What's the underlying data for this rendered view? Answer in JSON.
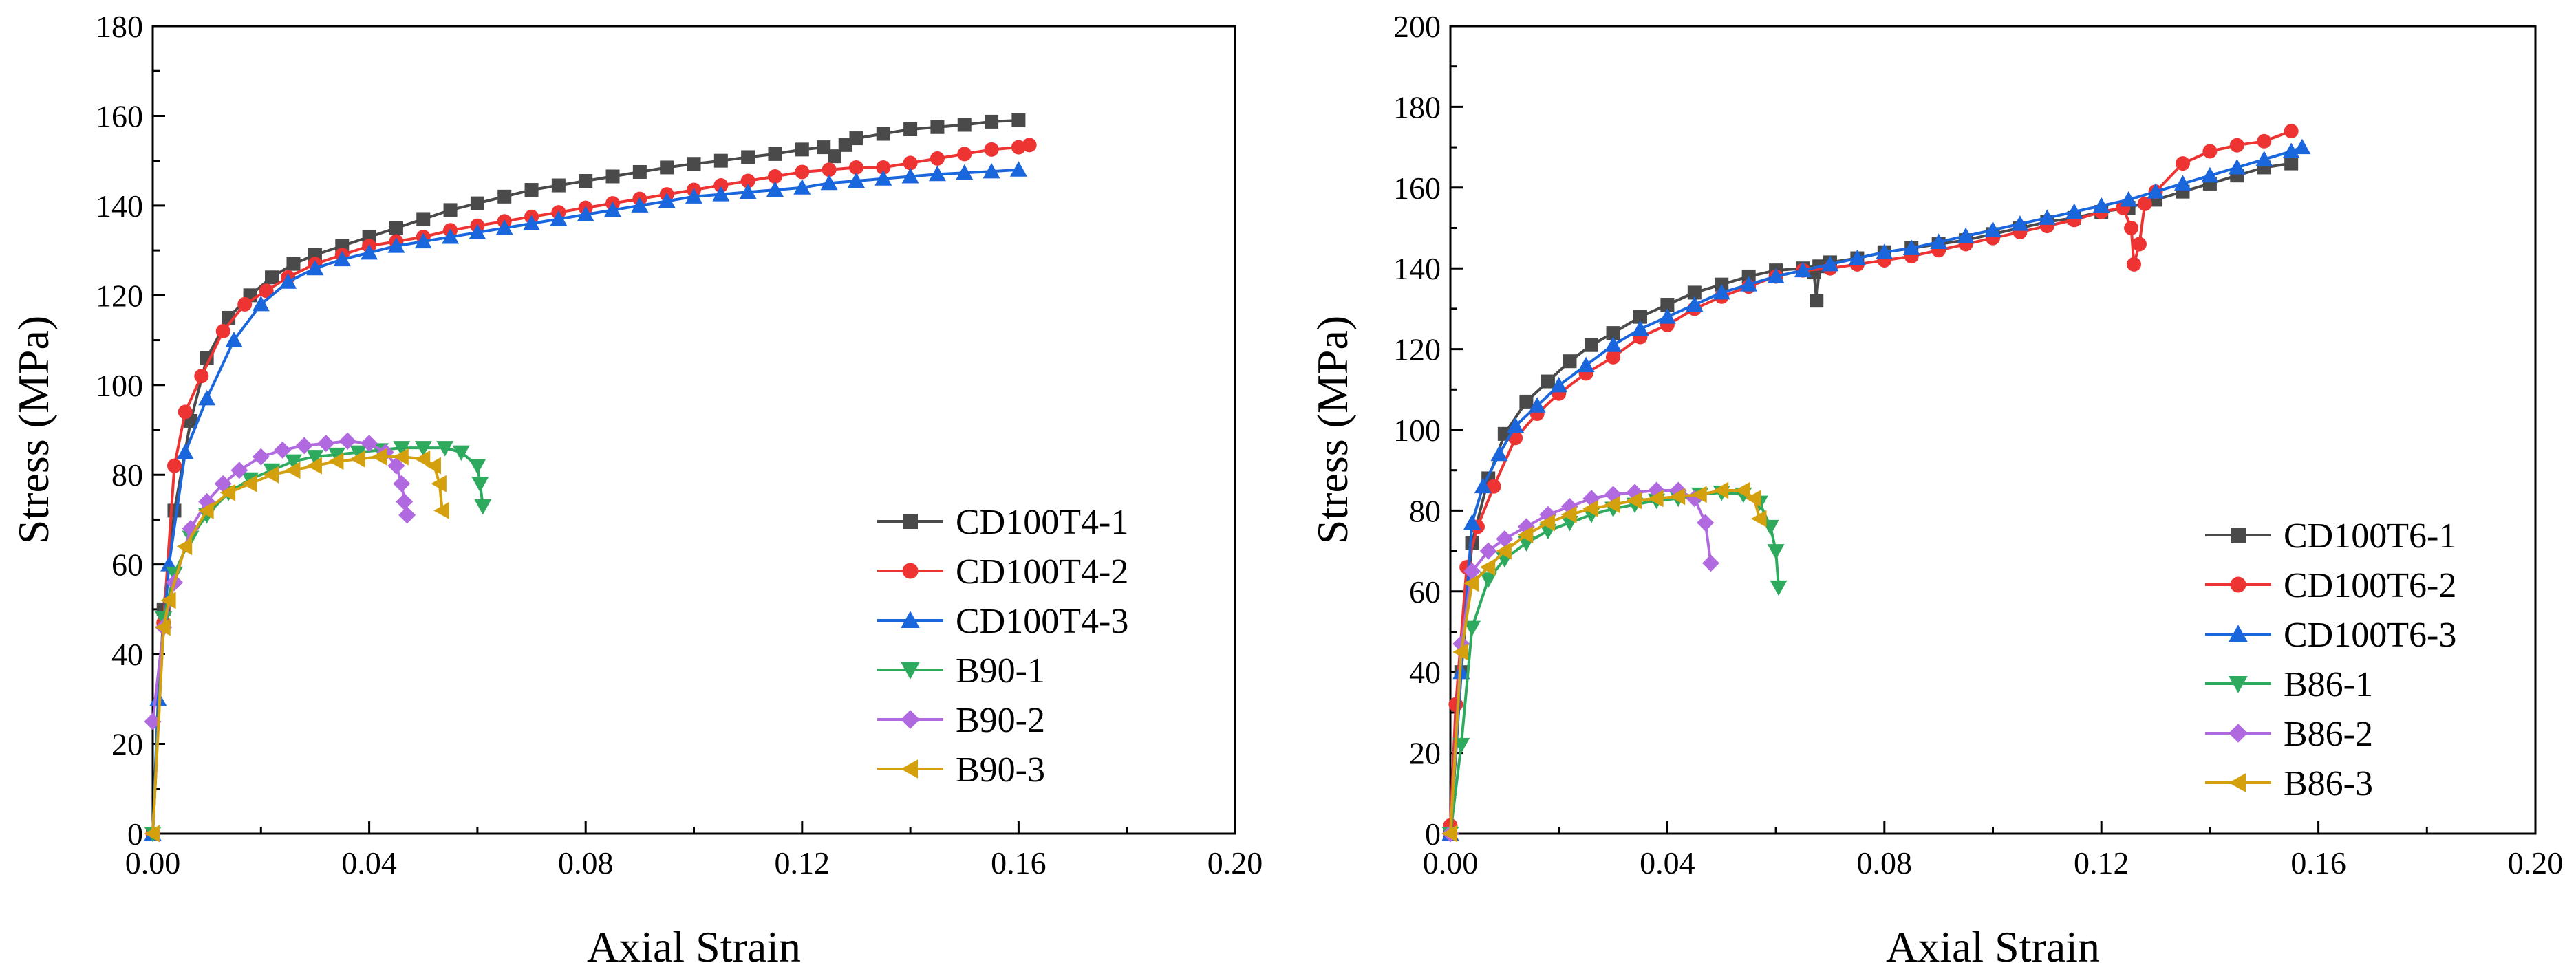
{
  "chart_data": [
    {
      "type": "line",
      "panel": "left",
      "xlabel": "Axial Strain",
      "ylabel": "Stress (MPa)",
      "xlim": [
        0,
        0.2
      ],
      "ylim": [
        0,
        180
      ],
      "xticks": [
        "0.00",
        "0.04",
        "0.08",
        "0.12",
        "0.16",
        "0.20"
      ],
      "yticks": [
        "0",
        "20",
        "40",
        "60",
        "80",
        "100",
        "120",
        "140",
        "160",
        "180"
      ],
      "legend_position": "bottom-right",
      "series": [
        {
          "name": "CD100T4-1",
          "color": "#4a4a4a",
          "marker": "square",
          "x": [
            0,
            0.002,
            0.004,
            0.007,
            0.01,
            0.014,
            0.018,
            0.022,
            0.026,
            0.03,
            0.035,
            0.04,
            0.045,
            0.05,
            0.055,
            0.06,
            0.065,
            0.07,
            0.075,
            0.08,
            0.085,
            0.09,
            0.095,
            0.1,
            0.105,
            0.11,
            0.115,
            0.12,
            0.124,
            0.126,
            0.128,
            0.13,
            0.135,
            0.14,
            0.145,
            0.15,
            0.155,
            0.16
          ],
          "y": [
            0,
            50,
            72,
            92,
            106,
            115,
            120,
            124,
            127,
            129,
            131,
            133,
            135,
            137,
            139,
            140.5,
            142,
            143.5,
            144.5,
            145.5,
            146.5,
            147.5,
            148.5,
            149.3,
            150,
            150.8,
            151.5,
            152.5,
            153,
            151,
            153.5,
            155,
            156,
            157,
            157.5,
            158,
            158.7,
            159
          ]
        },
        {
          "name": "CD100T4-2",
          "color": "#ee3333",
          "marker": "circle",
          "x": [
            0,
            0.002,
            0.004,
            0.006,
            0.009,
            0.013,
            0.017,
            0.021,
            0.025,
            0.03,
            0.035,
            0.04,
            0.045,
            0.05,
            0.055,
            0.06,
            0.065,
            0.07,
            0.075,
            0.08,
            0.085,
            0.09,
            0.095,
            0.1,
            0.105,
            0.11,
            0.115,
            0.12,
            0.125,
            0.13,
            0.135,
            0.14,
            0.145,
            0.15,
            0.155,
            0.16,
            0.162
          ],
          "y": [
            0,
            47,
            82,
            94,
            102,
            112,
            118,
            121,
            124,
            127,
            129,
            131,
            132,
            133,
            134.5,
            135.5,
            136.5,
            137.5,
            138.5,
            139.5,
            140.5,
            141.5,
            142.5,
            143.5,
            144.5,
            145.5,
            146.5,
            147.5,
            148,
            148.5,
            148.5,
            149.5,
            150.5,
            151.5,
            152.5,
            153,
            153.5
          ]
        },
        {
          "name": "CD100T4-3",
          "color": "#1a66dd",
          "marker": "triangle-up",
          "x": [
            0,
            0.001,
            0.003,
            0.006,
            0.01,
            0.015,
            0.02,
            0.025,
            0.03,
            0.035,
            0.04,
            0.045,
            0.05,
            0.055,
            0.06,
            0.065,
            0.07,
            0.075,
            0.08,
            0.085,
            0.09,
            0.095,
            0.1,
            0.105,
            0.11,
            0.115,
            0.12,
            0.125,
            0.13,
            0.135,
            0.14,
            0.145,
            0.15,
            0.155,
            0.16
          ],
          "y": [
            0,
            30,
            60,
            85,
            97,
            110,
            118,
            123,
            126,
            128,
            129.5,
            131,
            132,
            133,
            134,
            135,
            136,
            137,
            138,
            139,
            140,
            141,
            142,
            142.5,
            143,
            143.5,
            144,
            145,
            145.5,
            146,
            146.5,
            147,
            147.3,
            147.6,
            148
          ]
        },
        {
          "name": "B90-1",
          "color": "#2eaa5e",
          "marker": "triangle-down",
          "x": [
            0,
            0.002,
            0.004,
            0.007,
            0.01,
            0.014,
            0.018,
            0.022,
            0.026,
            0.03,
            0.034,
            0.038,
            0.042,
            0.046,
            0.05,
            0.054,
            0.057,
            0.06,
            0.0605,
            0.061
          ],
          "y": [
            0,
            48,
            58,
            66,
            71,
            76,
            79,
            81,
            83,
            84,
            84.5,
            85,
            85.5,
            86,
            86,
            86,
            85,
            82,
            78,
            73
          ]
        },
        {
          "name": "B90-2",
          "color": "#b069df",
          "marker": "diamond",
          "x": [
            0,
            0.002,
            0.004,
            0.007,
            0.01,
            0.013,
            0.016,
            0.02,
            0.024,
            0.028,
            0.032,
            0.036,
            0.04,
            0.043,
            0.045,
            0.046,
            0.0465,
            0.047
          ],
          "y": [
            25,
            46,
            56,
            68,
            74,
            78,
            81,
            84,
            85.5,
            86.5,
            87,
            87.5,
            87,
            85,
            82,
            78,
            74,
            71
          ]
        },
        {
          "name": "B90-3",
          "color": "#d4a00e",
          "marker": "triangle-left",
          "x": [
            0,
            0.002,
            0.003,
            0.006,
            0.01,
            0.014,
            0.018,
            0.022,
            0.026,
            0.03,
            0.034,
            0.038,
            0.042,
            0.046,
            0.05,
            0.052,
            0.053,
            0.0535
          ],
          "y": [
            0,
            46,
            52,
            64,
            72,
            76,
            78,
            80,
            81,
            82,
            83,
            83.5,
            84,
            84,
            83.5,
            82,
            78,
            72
          ]
        }
      ]
    },
    {
      "type": "line",
      "panel": "right",
      "xlabel": "Axial Strain",
      "ylabel": "Stress (MPa)",
      "xlim": [
        0,
        0.2
      ],
      "ylim": [
        0,
        200
      ],
      "xticks": [
        "0.00",
        "0.04",
        "0.08",
        "0.12",
        "0.16",
        "0.20"
      ],
      "yticks": [
        "0",
        "20",
        "40",
        "60",
        "80",
        "100",
        "120",
        "140",
        "160",
        "180",
        "200"
      ],
      "legend_position": "bottom-right",
      "series": [
        {
          "name": "CD100T6-1",
          "color": "#4a4a4a",
          "marker": "square",
          "x": [
            0,
            0.002,
            0.004,
            0.007,
            0.01,
            0.014,
            0.018,
            0.022,
            0.026,
            0.03,
            0.035,
            0.04,
            0.045,
            0.05,
            0.055,
            0.06,
            0.065,
            0.067,
            0.0675,
            0.068,
            0.07,
            0.075,
            0.08,
            0.085,
            0.09,
            0.095,
            0.1,
            0.105,
            0.11,
            0.115,
            0.12,
            0.125,
            0.13,
            0.135,
            0.14,
            0.145,
            0.15,
            0.155
          ],
          "y": [
            0,
            40,
            72,
            88,
            99,
            107,
            112,
            117,
            121,
            124,
            128,
            131,
            134,
            136,
            138,
            139.5,
            140,
            139,
            132,
            140.5,
            141.5,
            142.5,
            144,
            145,
            146,
            147,
            148.5,
            150,
            151.5,
            152.5,
            154,
            155,
            157,
            159,
            161,
            163,
            165,
            166
          ]
        },
        {
          "name": "CD100T6-2",
          "color": "#ee3333",
          "marker": "circle",
          "x": [
            0,
            0.001,
            0.003,
            0.005,
            0.008,
            0.012,
            0.016,
            0.02,
            0.025,
            0.03,
            0.035,
            0.04,
            0.045,
            0.05,
            0.055,
            0.06,
            0.065,
            0.07,
            0.075,
            0.08,
            0.085,
            0.09,
            0.095,
            0.1,
            0.105,
            0.11,
            0.115,
            0.12,
            0.124,
            0.1255,
            0.126,
            0.127,
            0.128,
            0.13,
            0.135,
            0.14,
            0.145,
            0.15,
            0.155
          ],
          "y": [
            2,
            32,
            66,
            76,
            86,
            98,
            104,
            109,
            114,
            118,
            123,
            126,
            130,
            133,
            135.5,
            138,
            139.5,
            140,
            141,
            142,
            143,
            144.5,
            146,
            147.5,
            149,
            150.5,
            152,
            154,
            155,
            150,
            141,
            146,
            156,
            159,
            166,
            169,
            170.5,
            171.5,
            174
          ]
        },
        {
          "name": "CD100T6-3",
          "color": "#1a66dd",
          "marker": "triangle-up",
          "x": [
            0,
            0.002,
            0.004,
            0.006,
            0.009,
            0.012,
            0.016,
            0.02,
            0.025,
            0.03,
            0.035,
            0.04,
            0.045,
            0.05,
            0.055,
            0.06,
            0.065,
            0.07,
            0.075,
            0.08,
            0.085,
            0.09,
            0.095,
            0.1,
            0.105,
            0.11,
            0.115,
            0.12,
            0.125,
            0.13,
            0.135,
            0.14,
            0.145,
            0.15,
            0.155,
            0.157
          ],
          "y": [
            0,
            40,
            77,
            86,
            94,
            101,
            106,
            111,
            116,
            121,
            125,
            128,
            131,
            134,
            136,
            138,
            139.5,
            141,
            142.5,
            144,
            145,
            146.5,
            148,
            149.5,
            151,
            152.5,
            154,
            155.5,
            157,
            159,
            161,
            163,
            165,
            167,
            169,
            170
          ]
        },
        {
          "name": "B86-1",
          "color": "#2eaa5e",
          "marker": "triangle-down",
          "x": [
            0,
            0.002,
            0.004,
            0.007,
            0.01,
            0.014,
            0.018,
            0.022,
            0.026,
            0.03,
            0.034,
            0.038,
            0.042,
            0.046,
            0.05,
            0.054,
            0.057,
            0.059,
            0.06,
            0.0605
          ],
          "y": [
            0,
            22,
            51,
            63,
            68,
            72,
            75,
            77,
            79,
            80.5,
            81.5,
            82.5,
            83,
            84,
            84.5,
            84,
            82,
            76,
            70,
            61
          ]
        },
        {
          "name": "B86-2",
          "color": "#b069df",
          "marker": "diamond",
          "x": [
            0,
            0.002,
            0.004,
            0.007,
            0.01,
            0.014,
            0.018,
            0.022,
            0.026,
            0.03,
            0.034,
            0.038,
            0.042,
            0.045,
            0.047,
            0.048
          ],
          "y": [
            0,
            47,
            65,
            70,
            73,
            76,
            79,
            81,
            83,
            84,
            84.5,
            85,
            85,
            83,
            77,
            67
          ]
        },
        {
          "name": "B86-3",
          "color": "#d4a00e",
          "marker": "triangle-left",
          "x": [
            0,
            0.002,
            0.004,
            0.007,
            0.01,
            0.014,
            0.018,
            0.022,
            0.026,
            0.03,
            0.034,
            0.038,
            0.042,
            0.046,
            0.05,
            0.054,
            0.056,
            0.057
          ],
          "y": [
            0,
            45,
            62,
            66,
            70,
            74,
            77,
            79,
            80.5,
            81.5,
            82.5,
            83,
            83.5,
            84,
            85,
            85,
            83,
            78
          ]
        }
      ]
    }
  ]
}
